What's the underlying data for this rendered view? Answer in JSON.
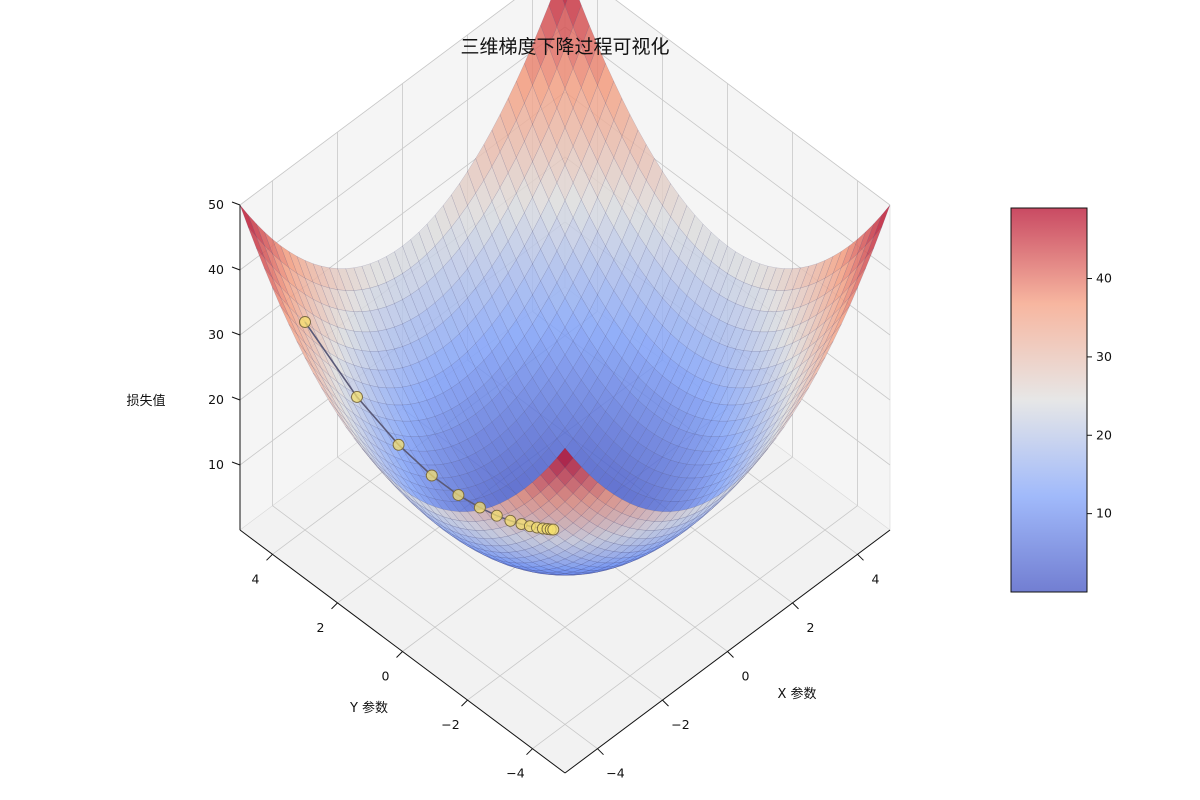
{
  "chart_data": {
    "type": "surface3d",
    "title": "三维梯度下降过程可视化",
    "function": "z = x^2 + y^2",
    "xlabel": "X 参数",
    "ylabel": "Y 参数",
    "zlabel": "损失值",
    "xlim": [
      -5,
      5
    ],
    "ylim": [
      -5,
      5
    ],
    "zlim": [
      0,
      50
    ],
    "x_ticks": [
      "−4",
      "−2",
      "0",
      "2",
      "4"
    ],
    "x_tick_values": [
      -4,
      -2,
      0,
      2,
      4
    ],
    "y_ticks": [
      "−4",
      "−2",
      "0",
      "2",
      "4"
    ],
    "y_tick_values": [
      -4,
      -2,
      0,
      2,
      4
    ],
    "z_ticks": [
      "10",
      "20",
      "30",
      "40",
      "50"
    ],
    "z_tick_values": [
      10,
      20,
      30,
      40,
      50
    ],
    "colormap": "coolwarm",
    "colorbar": {
      "range": [
        0,
        49
      ],
      "ticks": [
        "10",
        "20",
        "30",
        "40"
      ],
      "tick_values": [
        10,
        20,
        30,
        40
      ]
    },
    "grid": true,
    "gradient_descent_path": {
      "x": [
        -4.0,
        -3.2,
        -2.56,
        -2.05,
        -1.64,
        -1.31,
        -1.05,
        -0.84,
        -0.67,
        -0.54,
        -0.43,
        -0.34,
        -0.27,
        -0.22,
        -0.18
      ],
      "y": [
        4.0,
        3.2,
        2.56,
        2.05,
        1.64,
        1.31,
        1.05,
        0.84,
        0.67,
        0.54,
        0.43,
        0.34,
        0.27,
        0.22,
        0.18
      ],
      "z": [
        32.0,
        20.48,
        13.11,
        8.39,
        5.37,
        3.44,
        2.2,
        1.41,
        0.9,
        0.58,
        0.37,
        0.23,
        0.15,
        0.1,
        0.06
      ],
      "point_color": "#f5e06e"
    }
  }
}
